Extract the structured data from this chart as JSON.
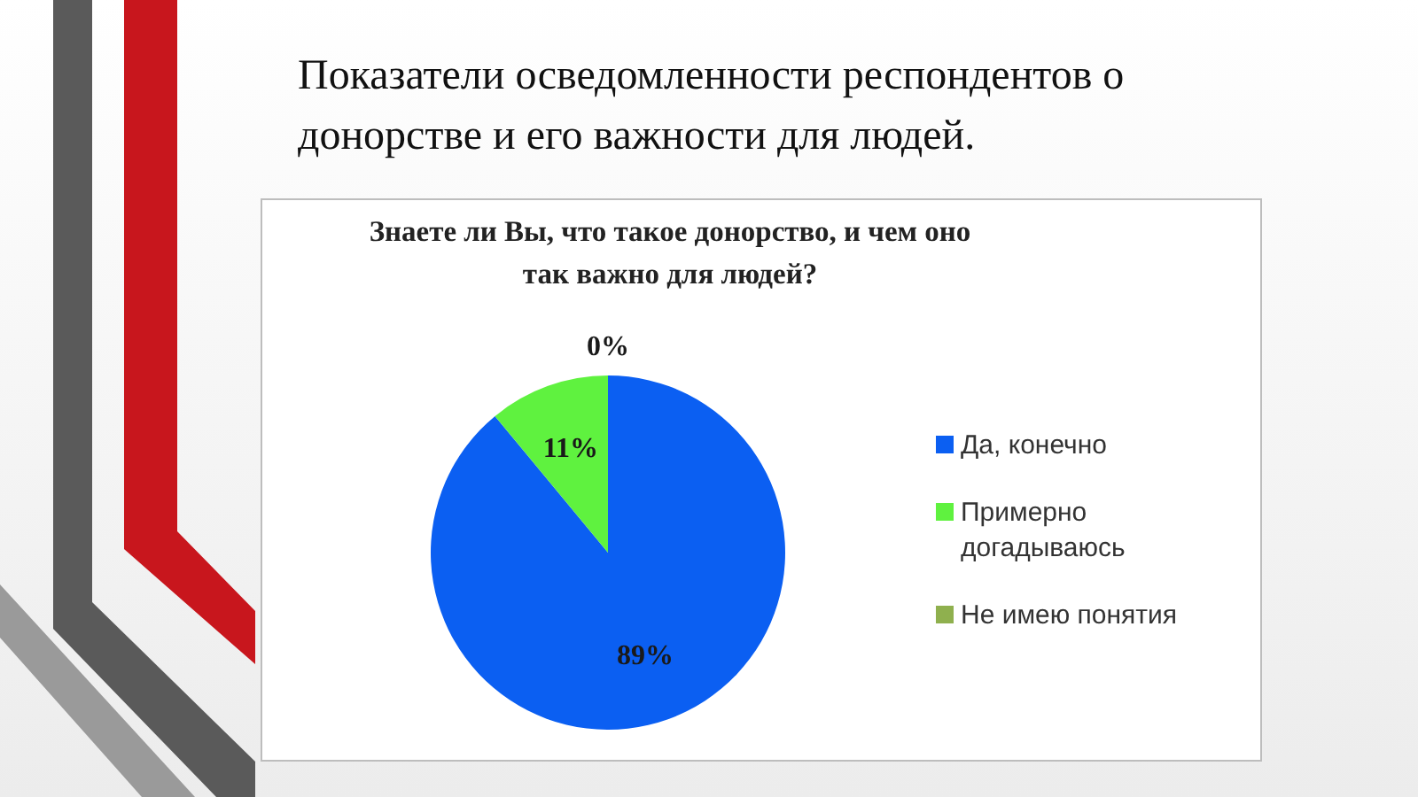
{
  "chart_data": {
    "type": "pie",
    "title": "Показатели осведомленности респондентов о донорстве и его важности для людей.",
    "subtitle": "Знаете ли Вы, что такое донорство, и чем оно так важно для людей?",
    "categories": [
      "Да, конечно",
      "Примерно догадываюсь",
      "Не имею понятия"
    ],
    "values": [
      89,
      11,
      0
    ],
    "colors": [
      "#0b5ff2",
      "#5ff23f",
      "#8fb04e"
    ],
    "value_labels": [
      "89%",
      "11%",
      "0%"
    ],
    "legend": "right"
  }
}
